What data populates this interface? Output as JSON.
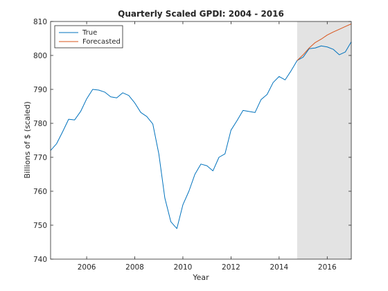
{
  "chart_data": {
    "type": "line",
    "title": "Quarterly Scaled GPDI: 2004 - 2016",
    "xlabel": "Year",
    "ylabel": "Billions of $ (scaled)",
    "xlim": [
      2004.5,
      2017.0
    ],
    "ylim": [
      740,
      810
    ],
    "xticks": [
      2006,
      2008,
      2010,
      2012,
      2014,
      2016
    ],
    "yticks": [
      740,
      750,
      760,
      770,
      780,
      790,
      800,
      810
    ],
    "grid": false,
    "legend_position": "top-left",
    "forecast_region": [
      2014.75,
      2017.0
    ],
    "forecast_region_color": "#e3e3e3",
    "series": [
      {
        "name": "True",
        "color": "#0072bd",
        "x": [
          2004.5,
          2004.75,
          2005.0,
          2005.25,
          2005.5,
          2005.75,
          2006.0,
          2006.25,
          2006.5,
          2006.75,
          2007.0,
          2007.25,
          2007.5,
          2007.75,
          2008.0,
          2008.25,
          2008.5,
          2008.75,
          2009.0,
          2009.25,
          2009.5,
          2009.75,
          2010.0,
          2010.25,
          2010.5,
          2010.75,
          2011.0,
          2011.25,
          2011.5,
          2011.75,
          2012.0,
          2012.25,
          2012.5,
          2012.75,
          2013.0,
          2013.25,
          2013.5,
          2013.75,
          2014.0,
          2014.25,
          2014.5,
          2014.75,
          2015.0,
          2015.25,
          2015.5,
          2015.75,
          2016.0,
          2016.25,
          2016.5,
          2016.75,
          2017.0
        ],
        "y": [
          772,
          774,
          777.5,
          781.2,
          781,
          783.5,
          787.2,
          790,
          789.8,
          789.2,
          787.8,
          787.5,
          789,
          788.2,
          786,
          783.2,
          782,
          779.8,
          771,
          758,
          751,
          749,
          756,
          760,
          765,
          768,
          767.5,
          766,
          770,
          771,
          778,
          780.8,
          783.8,
          783.5,
          783.2,
          787,
          788.5,
          792,
          793.8,
          792.8,
          795.5,
          798.5,
          799.5,
          802,
          802.2,
          802.8,
          802.5,
          801.8,
          800.2,
          801,
          804
        ]
      },
      {
        "name": "Forecasted",
        "color": "#d95319",
        "x": [
          2014.75,
          2015.0,
          2015.25,
          2015.5,
          2015.75,
          2016.0,
          2016.25,
          2016.5,
          2016.75,
          2017.0
        ],
        "y": [
          798.5,
          800.2,
          802.2,
          803.8,
          804.8,
          806,
          806.9,
          807.7,
          808.5,
          809.3
        ]
      }
    ]
  }
}
